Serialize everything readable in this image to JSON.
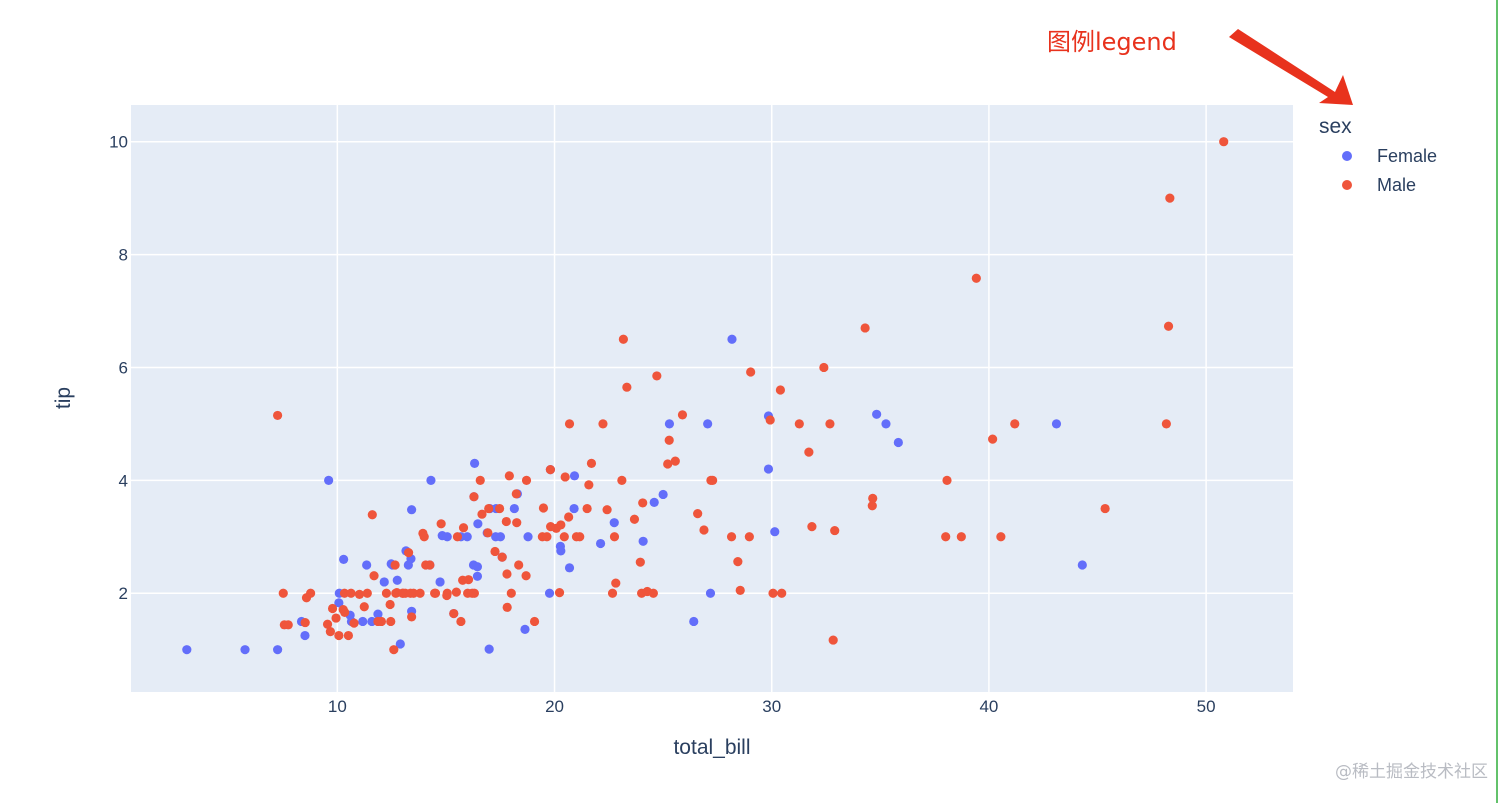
{
  "chart_data": {
    "type": "scatter",
    "xlabel": "total_bill",
    "ylabel": "tip",
    "xlim": [
      0.5,
      54
    ],
    "ylim": [
      0.25,
      10.65
    ],
    "x_ticks": [
      10,
      20,
      30,
      40,
      50
    ],
    "y_ticks": [
      2,
      4,
      6,
      8,
      10
    ],
    "grid": true,
    "legend_title": "sex",
    "legend_position": "top-right",
    "plot_background": "#e5ecf6",
    "series": [
      {
        "name": "Female",
        "color": "#636efa",
        "points": [
          [
            3.07,
            1.0
          ],
          [
            5.75,
            1.0
          ],
          [
            7.25,
            1.0
          ],
          [
            8.35,
            1.5
          ],
          [
            8.51,
            1.25
          ],
          [
            9.6,
            4.0
          ],
          [
            10.07,
            1.83
          ],
          [
            10.09,
            2.0
          ],
          [
            10.29,
            2.6
          ],
          [
            10.59,
            1.61
          ],
          [
            10.65,
            1.5
          ],
          [
            11.17,
            1.5
          ],
          [
            11.35,
            2.5
          ],
          [
            11.59,
            1.5
          ],
          [
            11.87,
            1.63
          ],
          [
            12.16,
            2.2
          ],
          [
            12.48,
            2.52
          ],
          [
            12.54,
            2.5
          ],
          [
            12.76,
            2.23
          ],
          [
            12.9,
            1.1
          ],
          [
            13.16,
            2.75
          ],
          [
            13.27,
            2.5
          ],
          [
            13.39,
            2.61
          ],
          [
            13.42,
            3.48
          ],
          [
            13.42,
            1.68
          ],
          [
            14.26,
            2.5
          ],
          [
            14.31,
            4.0
          ],
          [
            14.73,
            2.2
          ],
          [
            14.83,
            3.02
          ],
          [
            15.06,
            3.0
          ],
          [
            15.36,
            1.64
          ],
          [
            15.69,
            3.0
          ],
          [
            15.98,
            3.0
          ],
          [
            16.27,
            2.5
          ],
          [
            16.29,
            3.71
          ],
          [
            16.32,
            4.3
          ],
          [
            16.45,
            2.47
          ],
          [
            16.45,
            2.3
          ],
          [
            16.99,
            1.01
          ],
          [
            17.02,
            3.5
          ],
          [
            17.29,
            3.0
          ],
          [
            17.31,
            3.5
          ],
          [
            17.51,
            3.0
          ],
          [
            17.59,
            2.64
          ],
          [
            18.15,
            3.5
          ],
          [
            18.29,
            3.76
          ],
          [
            18.64,
            1.36
          ],
          [
            19.77,
            2.0
          ],
          [
            19.81,
            4.19
          ],
          [
            20.27,
            2.83
          ],
          [
            20.29,
            2.75
          ],
          [
            20.69,
            2.45
          ],
          [
            20.92,
            4.08
          ],
          [
            22.12,
            2.88
          ],
          [
            22.75,
            3.25
          ],
          [
            24.08,
            2.92
          ],
          [
            24.59,
            3.61
          ],
          [
            25.0,
            3.75
          ],
          [
            25.29,
            5.0
          ],
          [
            26.41,
            1.5
          ],
          [
            27.05,
            5.0
          ],
          [
            27.18,
            2.0
          ],
          [
            28.17,
            6.5
          ],
          [
            29.85,
            5.14
          ],
          [
            29.85,
            4.2
          ],
          [
            30.14,
            3.09
          ],
          [
            34.83,
            5.17
          ],
          [
            35.26,
            5.0
          ],
          [
            35.83,
            4.67
          ],
          [
            43.11,
            5.0
          ],
          [
            44.3,
            2.5
          ],
          [
            16.9,
            3.07
          ],
          [
            20.9,
            3.5
          ],
          [
            16.47,
            3.23
          ],
          [
            18.78,
            3.0
          ]
        ]
      },
      {
        "name": "Male",
        "color": "#ef553b",
        "points": [
          [
            7.25,
            5.15
          ],
          [
            7.51,
            2.0
          ],
          [
            7.56,
            1.44
          ],
          [
            7.74,
            1.44
          ],
          [
            8.52,
            1.48
          ],
          [
            8.58,
            1.92
          ],
          [
            8.77,
            2.0
          ],
          [
            9.55,
            1.45
          ],
          [
            9.68,
            1.32
          ],
          [
            9.78,
            1.73
          ],
          [
            9.94,
            1.56
          ],
          [
            10.07,
            1.25
          ],
          [
            10.27,
            1.71
          ],
          [
            10.33,
            2.0
          ],
          [
            10.34,
            1.66
          ],
          [
            10.51,
            1.25
          ],
          [
            10.63,
            2.0
          ],
          [
            10.77,
            1.47
          ],
          [
            11.02,
            1.98
          ],
          [
            11.24,
            1.76
          ],
          [
            11.38,
            2.0
          ],
          [
            11.61,
            3.39
          ],
          [
            11.69,
            2.31
          ],
          [
            11.87,
            1.5
          ],
          [
            12.03,
            1.5
          ],
          [
            12.26,
            2.0
          ],
          [
            12.43,
            1.8
          ],
          [
            12.46,
            1.5
          ],
          [
            12.6,
            1.0
          ],
          [
            12.66,
            2.5
          ],
          [
            12.69,
            2.0
          ],
          [
            12.74,
            2.01
          ],
          [
            13.0,
            2.0
          ],
          [
            13.03,
            2.0
          ],
          [
            13.13,
            2.0
          ],
          [
            13.28,
            2.72
          ],
          [
            13.37,
            2.0
          ],
          [
            13.42,
            1.58
          ],
          [
            13.51,
            2.0
          ],
          [
            13.81,
            2.0
          ],
          [
            13.94,
            3.06
          ],
          [
            14.0,
            3.0
          ],
          [
            14.07,
            2.5
          ],
          [
            14.26,
            2.5
          ],
          [
            14.48,
            2.0
          ],
          [
            14.52,
            2.0
          ],
          [
            14.78,
            3.23
          ],
          [
            15.04,
            1.96
          ],
          [
            15.06,
            2.0
          ],
          [
            15.36,
            1.64
          ],
          [
            15.48,
            2.02
          ],
          [
            15.53,
            3.0
          ],
          [
            15.69,
            1.5
          ],
          [
            15.77,
            2.23
          ],
          [
            15.81,
            3.16
          ],
          [
            16.0,
            2.0
          ],
          [
            16.04,
            2.24
          ],
          [
            16.21,
            2.0
          ],
          [
            16.29,
            3.71
          ],
          [
            16.31,
            2.0
          ],
          [
            16.58,
            4.0
          ],
          [
            16.66,
            3.4
          ],
          [
            16.93,
            3.07
          ],
          [
            16.97,
            3.5
          ],
          [
            17.26,
            2.74
          ],
          [
            17.47,
            3.5
          ],
          [
            17.59,
            2.64
          ],
          [
            17.78,
            3.27
          ],
          [
            17.81,
            2.34
          ],
          [
            17.82,
            1.75
          ],
          [
            17.92,
            4.08
          ],
          [
            18.01,
            2.0
          ],
          [
            18.24,
            3.76
          ],
          [
            18.26,
            3.25
          ],
          [
            18.35,
            2.5
          ],
          [
            18.69,
            2.31
          ],
          [
            18.71,
            4.0
          ],
          [
            19.08,
            1.5
          ],
          [
            19.44,
            3.0
          ],
          [
            19.49,
            3.51
          ],
          [
            19.65,
            3.0
          ],
          [
            19.81,
            4.19
          ],
          [
            19.82,
            3.18
          ],
          [
            20.08,
            3.15
          ],
          [
            20.23,
            2.01
          ],
          [
            20.29,
            3.21
          ],
          [
            20.45,
            3.0
          ],
          [
            20.49,
            4.06
          ],
          [
            20.65,
            3.35
          ],
          [
            20.69,
            5.0
          ],
          [
            21.01,
            3.0
          ],
          [
            21.16,
            3.0
          ],
          [
            21.5,
            3.5
          ],
          [
            21.58,
            3.92
          ],
          [
            21.7,
            4.3
          ],
          [
            22.23,
            5.0
          ],
          [
            22.42,
            3.48
          ],
          [
            22.67,
            2.0
          ],
          [
            22.76,
            3.0
          ],
          [
            22.82,
            2.18
          ],
          [
            23.1,
            4.0
          ],
          [
            23.17,
            6.5
          ],
          [
            23.33,
            5.65
          ],
          [
            23.68,
            3.31
          ],
          [
            23.95,
            2.55
          ],
          [
            24.01,
            2.0
          ],
          [
            24.06,
            3.6
          ],
          [
            24.27,
            2.03
          ],
          [
            24.55,
            2.0
          ],
          [
            24.71,
            5.85
          ],
          [
            25.21,
            4.29
          ],
          [
            25.28,
            4.71
          ],
          [
            25.56,
            4.34
          ],
          [
            25.89,
            5.16
          ],
          [
            26.59,
            3.41
          ],
          [
            26.88,
            3.12
          ],
          [
            27.2,
            4.0
          ],
          [
            27.28,
            4.0
          ],
          [
            28.15,
            3.0
          ],
          [
            28.44,
            2.56
          ],
          [
            28.55,
            2.05
          ],
          [
            28.97,
            3.0
          ],
          [
            29.03,
            5.92
          ],
          [
            29.93,
            5.07
          ],
          [
            30.06,
            2.0
          ],
          [
            30.4,
            5.6
          ],
          [
            30.46,
            2.0
          ],
          [
            31.27,
            5.0
          ],
          [
            31.71,
            4.5
          ],
          [
            31.85,
            3.18
          ],
          [
            32.4,
            6.0
          ],
          [
            32.68,
            5.0
          ],
          [
            32.83,
            1.17
          ],
          [
            32.9,
            3.11
          ],
          [
            34.3,
            6.7
          ],
          [
            34.63,
            3.55
          ],
          [
            34.65,
            3.68
          ],
          [
            38.01,
            3.0
          ],
          [
            38.07,
            4.0
          ],
          [
            38.73,
            3.0
          ],
          [
            39.42,
            7.58
          ],
          [
            40.17,
            4.73
          ],
          [
            40.55,
            3.0
          ],
          [
            41.19,
            5.0
          ],
          [
            45.35,
            3.5
          ],
          [
            48.17,
            5.0
          ],
          [
            48.27,
            6.73
          ],
          [
            48.33,
            9.0
          ],
          [
            50.81,
            10.0
          ]
        ]
      }
    ]
  },
  "annotation": {
    "text": "图例legend",
    "color": "#e8321d"
  },
  "watermark": {
    "text": "@稀土掘金技术社区"
  }
}
